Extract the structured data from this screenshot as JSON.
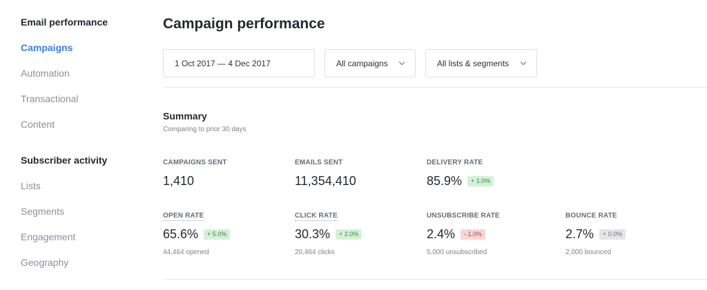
{
  "sidebar": {
    "section1": {
      "heading": "Email performance",
      "items": [
        "Campaigns",
        "Automation",
        "Transactional",
        "Content"
      ]
    },
    "section2": {
      "heading": "Subscriber activity",
      "items": [
        "Lists",
        "Segments",
        "Engagement",
        "Geography"
      ]
    },
    "active_item": "Campaigns"
  },
  "main": {
    "title": "Campaign performance",
    "filters": {
      "date_range": "1 Oct 2017 — 4 Dec 2017",
      "campaigns": "All campaigns",
      "lists": "All lists & segments"
    },
    "summary": {
      "title": "Summary",
      "subtitle": "Comparing to prior 30 days"
    },
    "metrics": {
      "campaigns_sent": {
        "label": "CAMPAIGNS SENT",
        "value": "1,410"
      },
      "emails_sent": {
        "label": "EMAILS SENT",
        "value": "11,354,410"
      },
      "delivery_rate": {
        "label": "DELIVERY RATE",
        "value": "85.9%",
        "change": "+ 1.0%",
        "trend": "up"
      },
      "open_rate": {
        "label": "OPEN RATE",
        "value": "65.6%",
        "change": "+ 5.0%",
        "trend": "up",
        "sub": "44,464 opened"
      },
      "click_rate": {
        "label": "CLICK RATE",
        "value": "30.3%",
        "change": "+ 2.0%",
        "trend": "up",
        "sub": "20,464 clicks"
      },
      "unsubscribe_rate": {
        "label": "UNSUBSCRIBE RATE",
        "value": "2.4%",
        "change": "- 1.0%",
        "trend": "down",
        "sub": "5,000 unsubscribed"
      },
      "bounce_rate": {
        "label": "BOUNCE RATE",
        "value": "2.7%",
        "change": "+ 0.0%",
        "trend": "neutral",
        "sub": "2,000 bounced"
      }
    }
  },
  "colors": {
    "accent": "#3d7ee0",
    "badge_up_bg": "#d6f0d8",
    "badge_down_bg": "#f7d6d6",
    "badge_neutral_bg": "#e3e5e9"
  },
  "icons": {
    "dropdown": "chevron-down-icon"
  }
}
